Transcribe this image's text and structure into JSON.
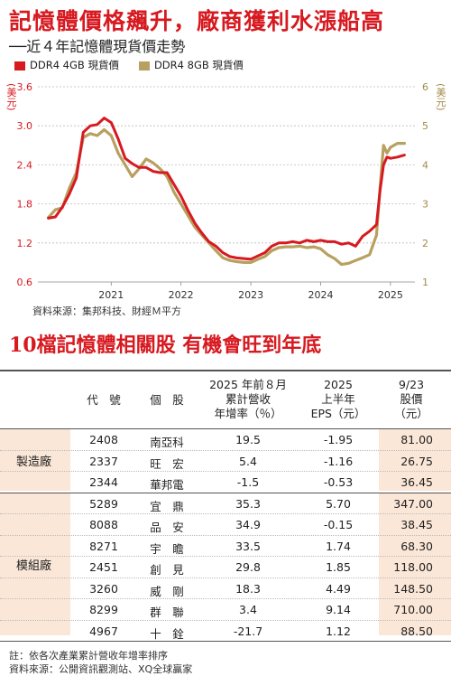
{
  "header": {
    "title": "記憶體價格飆升，廠商獲利水漲船高",
    "subtitle": "──近４年記憶體現貨價走勢"
  },
  "legend": {
    "series1": "DDR4 4GB 現貨價",
    "series2": "DDR4 8GB 現貨價",
    "color1": "#d71920",
    "color2": "#b8a060"
  },
  "axis": {
    "left_unit": "(美元)",
    "right_unit": "(美元)"
  },
  "chart_data": {
    "type": "line",
    "title": "記憶體價格飆升，廠商獲利水漲船高",
    "xlabel": "",
    "x_ticks": [
      "2021",
      "2022",
      "2023",
      "2024",
      "2025"
    ],
    "y_left_ticks": [
      "0.6",
      "1.2",
      "1.8",
      "2.4",
      "3.0",
      "3.6"
    ],
    "y_right_ticks": [
      "1",
      "2",
      "3",
      "4",
      "5",
      "6"
    ],
    "ylabel_left": "(美元)",
    "ylabel_right": "(美元)",
    "ylim_left": [
      0.6,
      3.6
    ],
    "ylim_right": [
      1,
      6
    ],
    "x": [
      2020.6,
      2020.7,
      2020.8,
      2020.9,
      2021.0,
      2021.1,
      2021.2,
      2021.3,
      2021.4,
      2021.5,
      2021.6,
      2021.7,
      2021.8,
      2021.9,
      2022.0,
      2022.1,
      2022.2,
      2022.3,
      2022.4,
      2022.5,
      2022.6,
      2022.7,
      2022.8,
      2022.9,
      2023.0,
      2023.1,
      2023.2,
      2023.3,
      2023.4,
      2023.5,
      2023.6,
      2023.7,
      2023.8,
      2023.9,
      2024.0,
      2024.1,
      2024.2,
      2024.3,
      2024.4,
      2024.5,
      2024.6,
      2024.7,
      2024.8,
      2024.9,
      2025.0,
      2025.1,
      2025.2,
      2025.3,
      2025.35,
      2025.4,
      2025.45,
      2025.5,
      2025.6,
      2025.7
    ],
    "series": [
      {
        "name": "DDR4 4GB 現貨價",
        "axis": "left",
        "values": [
          1.58,
          1.6,
          1.75,
          1.95,
          2.2,
          2.9,
          3.0,
          3.02,
          3.12,
          3.05,
          2.8,
          2.5,
          2.42,
          2.36,
          2.36,
          2.3,
          2.28,
          2.28,
          2.1,
          1.92,
          1.7,
          1.5,
          1.35,
          1.22,
          1.15,
          1.05,
          0.99,
          0.97,
          0.96,
          0.95,
          1.0,
          1.05,
          1.15,
          1.2,
          1.2,
          1.22,
          1.2,
          1.24,
          1.22,
          1.24,
          1.22,
          1.22,
          1.18,
          1.2,
          1.15,
          1.3,
          1.38,
          1.48,
          2.0,
          2.4,
          2.52,
          2.5,
          2.52,
          2.55
        ]
      },
      {
        "name": "DDR4 8GB 現貨價",
        "axis": "right",
        "values": [
          2.65,
          2.85,
          2.9,
          3.4,
          3.8,
          4.7,
          4.8,
          4.75,
          4.9,
          4.75,
          4.3,
          4.0,
          3.7,
          3.9,
          4.15,
          4.05,
          3.9,
          3.7,
          3.3,
          3.0,
          2.7,
          2.4,
          2.2,
          2.0,
          1.8,
          1.62,
          1.55,
          1.52,
          1.5,
          1.5,
          1.58,
          1.65,
          1.8,
          1.88,
          1.9,
          1.9,
          1.92,
          1.88,
          1.9,
          1.85,
          1.7,
          1.6,
          1.45,
          1.48,
          1.55,
          1.62,
          1.7,
          2.2,
          3.4,
          4.5,
          4.3,
          4.45,
          4.55,
          4.55
        ]
      }
    ],
    "grid": true,
    "legend_position": "top-left"
  },
  "source1": "資料來源：集邦科技、財經Ｍ平方",
  "section2_title": "10檔記憶體相關股  有機會旺到年底",
  "table": {
    "headers": {
      "code": "代　號",
      "name": "個　股",
      "rev_l1": "2025 年前８月",
      "rev_l2": "累計營收",
      "rev_l3": "年增率（％）",
      "eps_l1": "2025",
      "eps_l2": "上半年",
      "eps_l3": "EPS（元）",
      "price_l1": "9/23",
      "price_l2": "股價",
      "price_l3": "（元）"
    },
    "groups": [
      {
        "label": "製造廠",
        "rows": [
          {
            "code": "2408",
            "name": "南亞科",
            "rev": "19.5",
            "eps": "-1.95",
            "price": "81.00"
          },
          {
            "code": "2337",
            "name": "旺　宏",
            "rev": "5.4",
            "eps": "-1.16",
            "price": "26.75"
          },
          {
            "code": "2344",
            "name": "華邦電",
            "rev": "-1.5",
            "eps": "-0.53",
            "price": "36.45"
          }
        ]
      },
      {
        "label": "模組廠",
        "rows": [
          {
            "code": "5289",
            "name": "宜　鼎",
            "rev": "35.3",
            "eps": "5.70",
            "price": "347.00"
          },
          {
            "code": "8088",
            "name": "品　安",
            "rev": "34.9",
            "eps": "-0.15",
            "price": "38.45"
          },
          {
            "code": "8271",
            "name": "宇　瞻",
            "rev": "33.5",
            "eps": "1.74",
            "price": "68.30"
          },
          {
            "code": "2451",
            "name": "創　見",
            "rev": "29.8",
            "eps": "1.85",
            "price": "118.00"
          },
          {
            "code": "3260",
            "name": "威　剛",
            "rev": "18.3",
            "eps": "4.49",
            "price": "148.50"
          },
          {
            "code": "8299",
            "name": "群　聯",
            "rev": "3.4",
            "eps": "9.14",
            "price": "710.00"
          },
          {
            "code": "4967",
            "name": "十　銓",
            "rev": "-21.7",
            "eps": "1.12",
            "price": "88.50"
          }
        ]
      }
    ]
  },
  "notes": {
    "line1": "註：依各次產業累計營收年增率排序",
    "line2": "資料來源：公開資訊觀測站、XQ全球贏家"
  }
}
